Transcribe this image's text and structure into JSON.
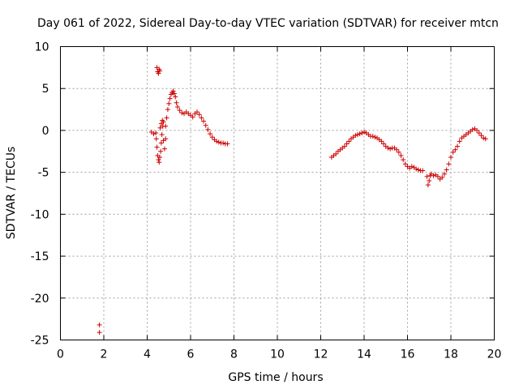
{
  "chart_data": {
    "type": "scatter",
    "title": "Day 061 of 2022, Sidereal Day-to-day VTEC variation (SDTVAR) for receiver mtcn",
    "xlabel": "GPS time / hours",
    "ylabel": "SDTVAR / TECUs",
    "xlim": [
      0,
      20
    ],
    "ylim": [
      -25,
      10
    ],
    "xticks": [
      0,
      2,
      4,
      6,
      8,
      10,
      12,
      14,
      16,
      18,
      20
    ],
    "yticks": [
      -25,
      -20,
      -15,
      -10,
      -5,
      0,
      5,
      10
    ],
    "grid": true,
    "marker": "+",
    "color": "#cc0000",
    "series": [
      {
        "name": "SDTVAR",
        "points": [
          [
            1.8,
            -23.2
          ],
          [
            1.8,
            -24.1
          ],
          [
            4.2,
            -0.2
          ],
          [
            4.3,
            -0.4
          ],
          [
            4.45,
            7.5
          ],
          [
            4.48,
            7.0
          ],
          [
            4.52,
            6.8
          ],
          [
            4.55,
            7.3
          ],
          [
            4.58,
            7.1
          ],
          [
            4.4,
            -0.3
          ],
          [
            4.42,
            -1.0
          ],
          [
            4.45,
            -2.0
          ],
          [
            4.48,
            -3.0
          ],
          [
            4.52,
            -3.5
          ],
          [
            4.55,
            -3.8
          ],
          [
            4.58,
            -3.2
          ],
          [
            4.62,
            -2.5
          ],
          [
            4.65,
            -1.5
          ],
          [
            4.68,
            -0.5
          ],
          [
            4.72,
            0.5
          ],
          [
            4.75,
            1.0
          ],
          [
            4.6,
            0.3
          ],
          [
            4.65,
            0.8
          ],
          [
            4.7,
            1.2
          ],
          [
            4.75,
            -1.2
          ],
          [
            4.8,
            -2.2
          ],
          [
            4.85,
            -1.0
          ],
          [
            4.85,
            0.5
          ],
          [
            4.9,
            1.5
          ],
          [
            4.95,
            2.5
          ],
          [
            5.0,
            3.2
          ],
          [
            5.05,
            3.8
          ],
          [
            5.1,
            4.3
          ],
          [
            5.15,
            4.5
          ],
          [
            5.2,
            4.7
          ],
          [
            5.25,
            4.4
          ],
          [
            5.3,
            4.0
          ],
          [
            5.35,
            3.3
          ],
          [
            5.4,
            2.8
          ],
          [
            5.5,
            2.4
          ],
          [
            5.6,
            2.1
          ],
          [
            5.7,
            2.0
          ],
          [
            5.8,
            2.2
          ],
          [
            5.9,
            2.0
          ],
          [
            6.0,
            1.8
          ],
          [
            6.1,
            1.6
          ],
          [
            6.2,
            2.0
          ],
          [
            6.3,
            2.2
          ],
          [
            6.4,
            1.9
          ],
          [
            6.5,
            1.5
          ],
          [
            6.6,
            1.1
          ],
          [
            6.7,
            0.6
          ],
          [
            6.8,
            0.1
          ],
          [
            6.9,
            -0.4
          ],
          [
            7.0,
            -0.8
          ],
          [
            7.1,
            -1.1
          ],
          [
            7.2,
            -1.3
          ],
          [
            7.3,
            -1.4
          ],
          [
            7.4,
            -1.5
          ],
          [
            7.5,
            -1.5
          ],
          [
            7.6,
            -1.6
          ],
          [
            7.7,
            -1.6
          ],
          [
            12.5,
            -3.2
          ],
          [
            12.6,
            -3.0
          ],
          [
            12.7,
            -2.8
          ],
          [
            12.8,
            -2.5
          ],
          [
            12.9,
            -2.3
          ],
          [
            13.0,
            -2.1
          ],
          [
            13.1,
            -1.9
          ],
          [
            13.2,
            -1.6
          ],
          [
            13.3,
            -1.3
          ],
          [
            13.4,
            -1.0
          ],
          [
            13.5,
            -0.8
          ],
          [
            13.6,
            -0.6
          ],
          [
            13.7,
            -0.5
          ],
          [
            13.8,
            -0.4
          ],
          [
            13.9,
            -0.3
          ],
          [
            14.0,
            -0.2
          ],
          [
            14.1,
            -0.3
          ],
          [
            14.2,
            -0.5
          ],
          [
            14.3,
            -0.7
          ],
          [
            14.4,
            -0.7
          ],
          [
            14.5,
            -0.8
          ],
          [
            14.6,
            -0.9
          ],
          [
            14.7,
            -1.1
          ],
          [
            14.8,
            -1.3
          ],
          [
            14.9,
            -1.6
          ],
          [
            15.0,
            -1.9
          ],
          [
            15.1,
            -2.1
          ],
          [
            15.2,
            -2.2
          ],
          [
            15.3,
            -2.1
          ],
          [
            15.4,
            -2.1
          ],
          [
            15.5,
            -2.3
          ],
          [
            15.6,
            -2.6
          ],
          [
            15.7,
            -3.0
          ],
          [
            15.8,
            -3.5
          ],
          [
            15.9,
            -4.0
          ],
          [
            16.0,
            -4.3
          ],
          [
            16.1,
            -4.5
          ],
          [
            16.2,
            -4.3
          ],
          [
            16.3,
            -4.4
          ],
          [
            16.4,
            -4.6
          ],
          [
            16.5,
            -4.7
          ],
          [
            16.6,
            -4.8
          ],
          [
            16.7,
            -4.8
          ],
          [
            16.9,
            -5.5
          ],
          [
            16.95,
            -6.5
          ],
          [
            17.0,
            -6.0
          ],
          [
            17.05,
            -5.4
          ],
          [
            17.1,
            -5.2
          ],
          [
            17.2,
            -5.4
          ],
          [
            17.3,
            -5.3
          ],
          [
            17.4,
            -5.5
          ],
          [
            17.5,
            -5.8
          ],
          [
            17.6,
            -5.6
          ],
          [
            17.7,
            -5.2
          ],
          [
            17.8,
            -4.7
          ],
          [
            17.9,
            -4.0
          ],
          [
            18.0,
            -3.2
          ],
          [
            18.1,
            -2.6
          ],
          [
            18.2,
            -2.3
          ],
          [
            18.3,
            -1.9
          ],
          [
            18.4,
            -1.3
          ],
          [
            18.5,
            -0.9
          ],
          [
            18.6,
            -0.7
          ],
          [
            18.7,
            -0.5
          ],
          [
            18.8,
            -0.3
          ],
          [
            18.9,
            -0.1
          ],
          [
            19.0,
            0.1
          ],
          [
            19.1,
            0.2
          ],
          [
            19.2,
            0.0
          ],
          [
            19.3,
            -0.3
          ],
          [
            19.4,
            -0.6
          ],
          [
            19.5,
            -0.9
          ],
          [
            19.6,
            -1.0
          ]
        ]
      }
    ]
  }
}
